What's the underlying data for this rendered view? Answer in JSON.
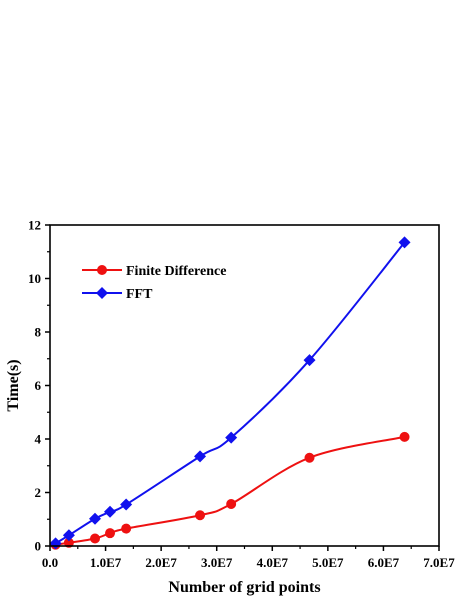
{
  "chart_data": {
    "type": "line",
    "xlabel": "Number of grid points",
    "ylabel": "Time(s)",
    "xlim": [
      0,
      70000000
    ],
    "ylim": [
      0,
      12
    ],
    "xticks": [
      0,
      10000000,
      20000000,
      30000000,
      40000000,
      50000000,
      60000000,
      70000000
    ],
    "xtick_labels": [
      "0.0",
      "1.0E7",
      "2.0E7",
      "3.0E7",
      "4.0E7",
      "5.0E7",
      "6.0E7",
      "7.0E7"
    ],
    "yticks": [
      0,
      2,
      4,
      6,
      8,
      10,
      12
    ],
    "ytick_labels": [
      "0",
      "2",
      "4",
      "6",
      "8",
      "10",
      "12"
    ],
    "legend_position": "top-left",
    "series": [
      {
        "name": "Finite Difference",
        "color": "#ee1111",
        "marker": "circle",
        "x": [
          1000000,
          3400000,
          8100000,
          10800000,
          13700000,
          27000000,
          32600000,
          46700000,
          63800000
        ],
        "y": [
          0.05,
          0.12,
          0.28,
          0.48,
          0.65,
          1.15,
          1.57,
          3.3,
          4.08
        ]
      },
      {
        "name": "FFT",
        "color": "#1111ee",
        "marker": "diamond",
        "x": [
          1000000,
          3400000,
          8100000,
          10800000,
          13700000,
          27000000,
          32600000,
          46700000,
          63800000
        ],
        "y": [
          0.1,
          0.4,
          1.02,
          1.28,
          1.55,
          3.35,
          4.05,
          6.95,
          11.35
        ]
      }
    ]
  }
}
